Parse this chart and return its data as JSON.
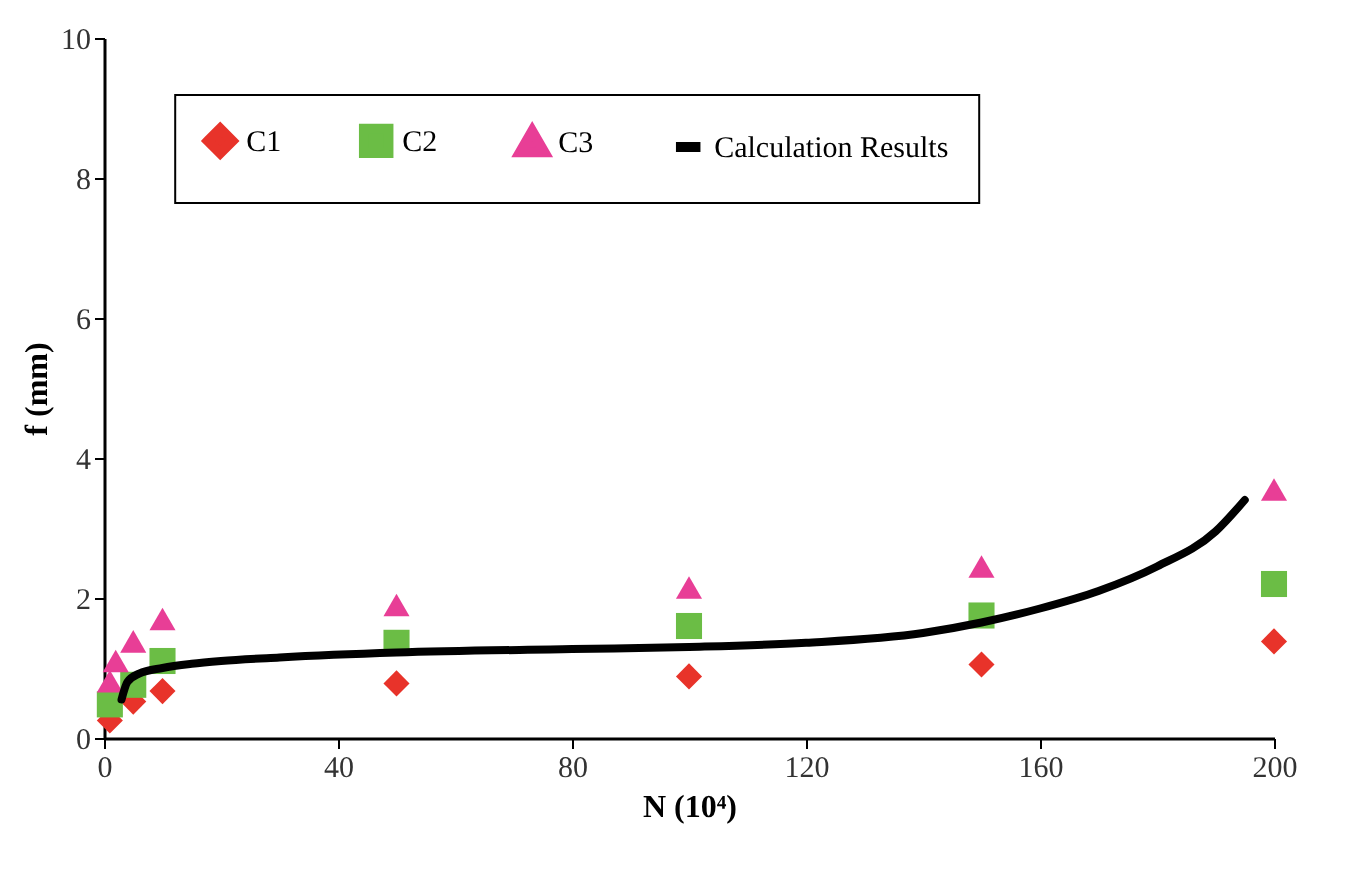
{
  "chart_data": {
    "type": "scatter",
    "xlabel": "N (10⁴)",
    "ylabel": "f (mm)",
    "xlim": [
      0,
      200
    ],
    "ylim": [
      0,
      10
    ],
    "xticks": [
      0,
      40,
      80,
      120,
      160,
      200
    ],
    "yticks": [
      0,
      2,
      4,
      6,
      8,
      10
    ],
    "grid": false,
    "legend": "top",
    "series": [
      {
        "name": "C1",
        "color": "#e8332a",
        "marker": "diamond",
        "x": [
          1,
          5,
          10,
          50,
          100,
          150,
          200
        ],
        "values": [
          0.25,
          0.52,
          0.67,
          0.78,
          0.88,
          1.05,
          1.38
        ]
      },
      {
        "name": "C2",
        "color": "#6bbd45",
        "marker": "square",
        "x": [
          1,
          5,
          10,
          50,
          100,
          150,
          200
        ],
        "values": [
          0.48,
          0.76,
          1.1,
          1.36,
          1.6,
          1.75,
          2.2
        ]
      },
      {
        "name": "C3",
        "color": "#e83e96",
        "marker": "triangle",
        "x": [
          1,
          2,
          5,
          10,
          50,
          100,
          150,
          200
        ],
        "values": [
          0.81,
          1.1,
          1.38,
          1.7,
          1.9,
          2.15,
          2.45,
          3.55
        ]
      },
      {
        "name": "Calculation Results",
        "type": "line",
        "color": "#000000",
        "marker": "none",
        "line_style": "solid",
        "x": [
          3,
          4,
          6,
          10,
          15,
          20,
          30,
          50,
          80,
          100,
          120,
          140,
          150,
          160,
          170,
          180,
          190,
          195
        ],
        "values": [
          0.55,
          0.8,
          0.92,
          1.0,
          1.06,
          1.1,
          1.15,
          1.22,
          1.27,
          1.3,
          1.36,
          1.5,
          1.65,
          1.85,
          2.1,
          2.45,
          2.95,
          3.4
        ]
      }
    ]
  }
}
